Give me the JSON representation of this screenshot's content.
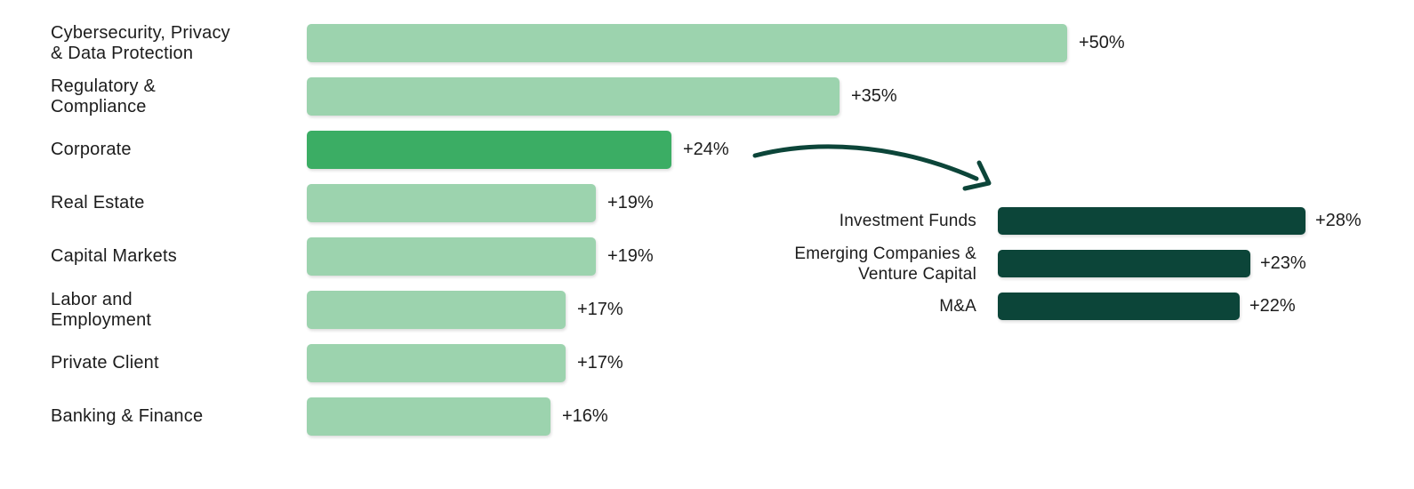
{
  "background_color": "#ffffff",
  "text_color": "#1c1c1c",
  "chart_data": [
    {
      "id": "practice-areas-growth",
      "type": "bar",
      "orientation": "horizontal",
      "grid": false,
      "legend": false,
      "xlim": [
        0,
        50
      ],
      "categories": [
        "Cybersecurity, Privacy & Data Protection",
        "Regulatory & Compliance",
        "Corporate",
        "Real Estate",
        "Capital Markets",
        "Labor and Employment",
        "Private Client",
        "Banking & Finance"
      ],
      "label_lines": [
        [
          "Cybersecurity, Privacy",
          "& Data Protection"
        ],
        [
          "Regulatory &",
          "Compliance"
        ],
        [
          "Corporate"
        ],
        [
          "Real Estate"
        ],
        [
          "Capital Markets"
        ],
        [
          "Labor and",
          "Employment"
        ],
        [
          "Private Client"
        ],
        [
          "Banking & Finance"
        ]
      ],
      "values": [
        50,
        35,
        24,
        19,
        19,
        17,
        17,
        16
      ],
      "value_labels": [
        "+50%",
        "+35%",
        "+24%",
        "+19%",
        "+19%",
        "+17%",
        "+17%",
        "+16%"
      ],
      "bar_color": "#9cd3ae",
      "highlight_index": 2,
      "highlight_color": "#3bad64"
    },
    {
      "id": "corporate-breakdown",
      "type": "bar",
      "orientation": "horizontal",
      "grid": false,
      "legend": false,
      "xlim": [
        0,
        28
      ],
      "categories": [
        "Investment Funds",
        "Emerging Companies & Venture Capital",
        "M&A"
      ],
      "label_lines": [
        [
          "Investment Funds"
        ],
        [
          "Emerging Companies &",
          "Venture Capital"
        ],
        [
          "M&A"
        ]
      ],
      "values": [
        28,
        23,
        22
      ],
      "value_labels": [
        "+28%",
        "+23%",
        "+22%"
      ],
      "bar_color": "#0c4539"
    }
  ],
  "annotation": {
    "arrow": {
      "from_category": "Corporate",
      "to_chart": "corporate-breakdown",
      "color": "#0c4539"
    }
  }
}
